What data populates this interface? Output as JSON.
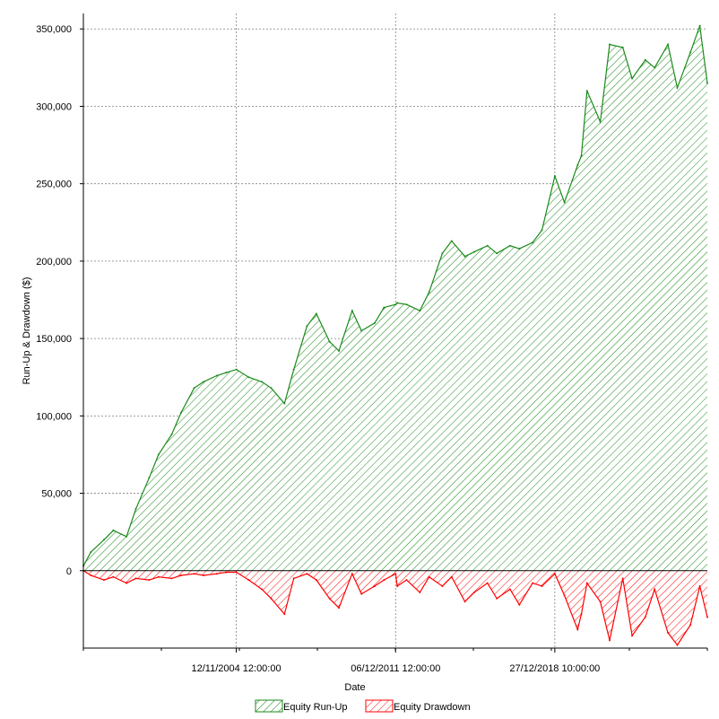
{
  "chart_data": {
    "type": "area",
    "title": "",
    "xlabel": "Date",
    "ylabel": "Run-Up & Drawdown ($)",
    "ylim": [
      -50000,
      360000
    ],
    "y_ticks": [
      0,
      50000,
      100000,
      150000,
      200000,
      250000,
      300000,
      350000
    ],
    "y_tick_labels": [
      "0",
      "50,000",
      "100,000",
      "150,000",
      "200,000",
      "250,000",
      "300,000",
      "350,000"
    ],
    "x_axis_kind": "date",
    "xlim": [
      "1998-02-01",
      "2025-10-01"
    ],
    "x_ticks": [
      "2004-11-12",
      "2011-12-06",
      "2018-12-27"
    ],
    "x_tick_labels": [
      "12/11/2004 12:00:00",
      "06/12/2011 12:00:00",
      "27/12/2018 10:00:00"
    ],
    "grid": true,
    "legend_position": "bottom",
    "colors": {
      "runup": "#1a8a1a",
      "drawdown": "#ff0000",
      "grid": "#808080",
      "axis": "#000000"
    },
    "series": [
      {
        "name": "Equity Run-Up",
        "x": [
          "1998-02-01",
          "1998-06-01",
          "1999-01-01",
          "1999-06-01",
          "2000-01-01",
          "2000-06-01",
          "2001-01-01",
          "2001-06-01",
          "2002-01-01",
          "2002-06-01",
          "2003-01-01",
          "2003-06-01",
          "2004-01-01",
          "2004-06-01",
          "2004-11-12",
          "2005-06-01",
          "2006-01-01",
          "2006-06-01",
          "2007-01-01",
          "2007-06-01",
          "2008-01-01",
          "2008-06-01",
          "2009-01-01",
          "2009-06-01",
          "2010-01-01",
          "2010-06-01",
          "2011-01-01",
          "2011-06-01",
          "2011-12-06",
          "2012-01-01",
          "2012-06-01",
          "2013-01-01",
          "2013-06-01",
          "2014-01-01",
          "2014-06-01",
          "2015-01-01",
          "2015-06-01",
          "2016-01-01",
          "2016-06-01",
          "2017-01-01",
          "2017-06-01",
          "2018-01-01",
          "2018-06-01",
          "2018-12-27",
          "2019-06-01",
          "2020-01-01",
          "2020-03-01",
          "2020-06-01",
          "2021-01-01",
          "2021-06-01",
          "2022-01-01",
          "2022-06-01",
          "2023-01-01",
          "2023-06-01",
          "2024-01-01",
          "2024-06-01",
          "2025-01-01",
          "2025-06-01",
          "2025-10-01"
        ],
        "values": [
          3000,
          12000,
          20000,
          26000,
          22000,
          40000,
          60000,
          75000,
          88000,
          102000,
          118000,
          122000,
          126000,
          128000,
          130000,
          125000,
          122000,
          118000,
          108000,
          130000,
          158000,
          166000,
          148000,
          142000,
          168000,
          155000,
          160000,
          170000,
          172000,
          173000,
          172000,
          168000,
          180000,
          205000,
          213000,
          203000,
          206000,
          210000,
          205000,
          210000,
          208000,
          212000,
          220000,
          255000,
          238000,
          262000,
          268000,
          310000,
          290000,
          340000,
          338000,
          318000,
          330000,
          325000,
          340000,
          312000,
          335000,
          352000,
          315000
        ]
      },
      {
        "name": "Equity Drawdown",
        "x": [
          "1998-02-01",
          "1998-06-01",
          "1999-01-01",
          "1999-06-01",
          "2000-01-01",
          "2000-06-01",
          "2001-01-01",
          "2001-06-01",
          "2002-01-01",
          "2002-06-01",
          "2003-01-01",
          "2003-06-01",
          "2004-01-01",
          "2004-06-01",
          "2004-11-12",
          "2005-06-01",
          "2006-01-01",
          "2006-06-01",
          "2007-01-01",
          "2007-06-01",
          "2008-01-01",
          "2008-06-01",
          "2009-01-01",
          "2009-06-01",
          "2010-01-01",
          "2010-06-01",
          "2011-01-01",
          "2011-06-01",
          "2011-12-06",
          "2012-01-01",
          "2012-06-01",
          "2013-01-01",
          "2013-06-01",
          "2014-01-01",
          "2014-06-01",
          "2015-01-01",
          "2015-06-01",
          "2016-01-01",
          "2016-06-01",
          "2017-01-01",
          "2017-06-01",
          "2018-01-01",
          "2018-06-01",
          "2018-12-27",
          "2019-06-01",
          "2020-01-01",
          "2020-03-01",
          "2020-06-01",
          "2021-01-01",
          "2021-06-01",
          "2022-01-01",
          "2022-06-01",
          "2023-01-01",
          "2023-06-01",
          "2024-01-01",
          "2024-06-01",
          "2025-01-01",
          "2025-06-01",
          "2025-10-01"
        ],
        "values": [
          0,
          -3000,
          -6000,
          -4000,
          -8000,
          -5000,
          -6000,
          -4000,
          -5000,
          -3000,
          -2000,
          -3000,
          -2000,
          -1000,
          -1000,
          -6000,
          -12000,
          -18000,
          -28000,
          -5000,
          -2000,
          -6000,
          -18000,
          -24000,
          -2000,
          -15000,
          -10000,
          -6000,
          -2000,
          -10000,
          -6000,
          -14000,
          -4000,
          -10000,
          -4000,
          -20000,
          -14000,
          -8000,
          -18000,
          -12000,
          -22000,
          -8000,
          -10000,
          -2000,
          -16000,
          -38000,
          -28000,
          -8000,
          -20000,
          -45000,
          -5000,
          -42000,
          -30000,
          -12000,
          -40000,
          -48000,
          -35000,
          -10000,
          -30000
        ]
      }
    ]
  }
}
